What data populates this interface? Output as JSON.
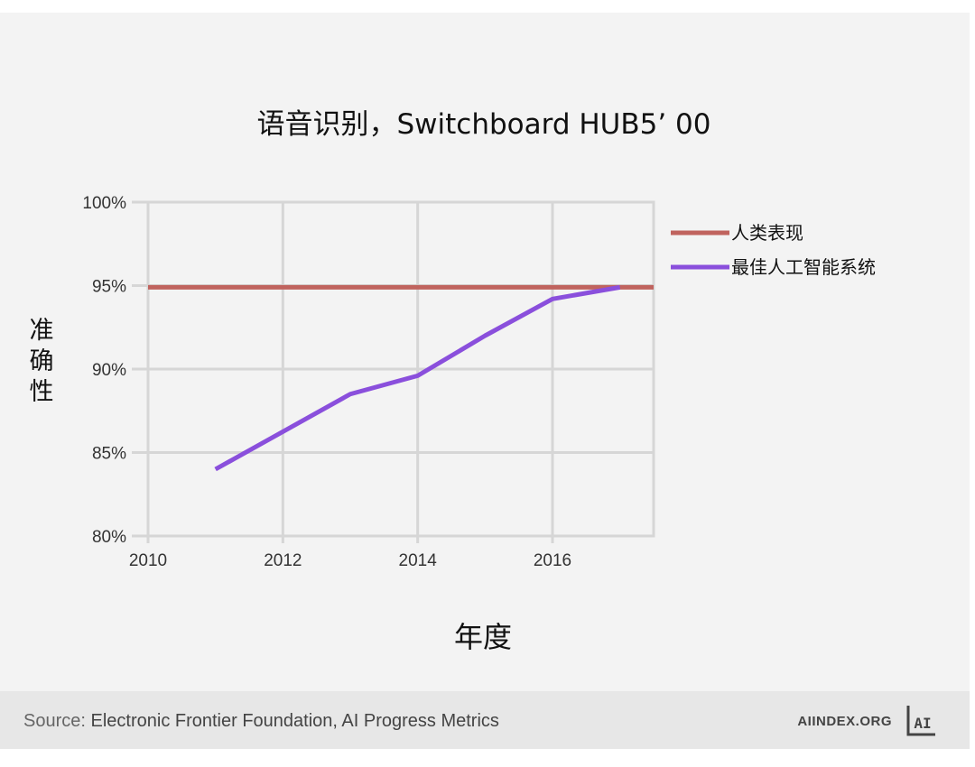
{
  "chart_data": {
    "type": "line",
    "title": "语音识别，Switchboard HUB5’ 00",
    "xlabel": "年度",
    "ylabel": "准确性",
    "xlim": [
      2010,
      2017.5
    ],
    "ylim": [
      80,
      100
    ],
    "x_ticks": [
      2010,
      2012,
      2014,
      2016
    ],
    "x_tick_labels": [
      "2010",
      "2012",
      "2014",
      "2016"
    ],
    "y_ticks": [
      80,
      85,
      90,
      95,
      100
    ],
    "y_tick_labels": [
      "80%",
      "85%",
      "90%",
      "95%",
      "100%"
    ],
    "grid": true,
    "legend_position": "right",
    "series": [
      {
        "name": "人类表现",
        "color": "#c0635e",
        "points": [
          [
            2010,
            94.9
          ],
          [
            2017.5,
            94.9
          ]
        ]
      },
      {
        "name": "最佳人工智能系统",
        "color": "#8a4fdc",
        "points": [
          [
            2011,
            84.0
          ],
          [
            2013,
            88.5
          ],
          [
            2014,
            89.6
          ],
          [
            2015,
            92.0
          ],
          [
            2016,
            94.2
          ],
          [
            2017,
            94.9
          ]
        ]
      }
    ]
  },
  "footer": {
    "source_prefix": "Source:",
    "source_text": "Electronic Frontier Foundation, AI Progress Metrics",
    "site": "AIINDEX.ORG",
    "logo_text": "AI"
  }
}
